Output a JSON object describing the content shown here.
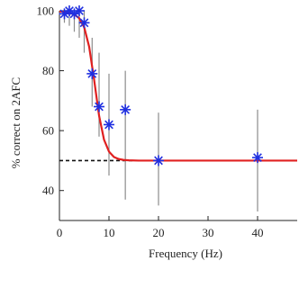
{
  "chart_data": {
    "type": "scatter",
    "title": "",
    "xlabel": "Frequency (Hz)",
    "ylabel": "% correct on 2AFC",
    "xlim": [
      0,
      48
    ],
    "ylim": [
      30,
      100
    ],
    "x_ticks": [
      0,
      10,
      20,
      30,
      40
    ],
    "y_ticks": [
      40,
      60,
      80,
      100
    ],
    "grid": false,
    "legend": "none",
    "series": [
      {
        "marker": "asterisk",
        "color": "#1f2fe0",
        "points": [
          {
            "x": 1,
            "y": 99,
            "err_low": 96,
            "err_high": 100
          },
          {
            "x": 2,
            "y": 100,
            "err_low": 95,
            "err_high": 100
          },
          {
            "x": 3,
            "y": 99,
            "err_low": 93,
            "err_high": 100
          },
          {
            "x": 4,
            "y": 100,
            "err_low": 91,
            "err_high": 100
          },
          {
            "x": 5,
            "y": 96,
            "err_low": 86,
            "err_high": 100
          },
          {
            "x": 6.6,
            "y": 79,
            "err_low": 68,
            "err_high": 91
          },
          {
            "x": 8,
            "y": 68,
            "err_low": 58,
            "err_high": 86
          },
          {
            "x": 10,
            "y": 62,
            "err_low": 45,
            "err_high": 79
          },
          {
            "x": 13.3,
            "y": 67,
            "err_low": 37,
            "err_high": 80
          },
          {
            "x": 20,
            "y": 50,
            "err_low": 35,
            "err_high": 66
          },
          {
            "x": 40,
            "y": 51,
            "err_low": 33,
            "err_high": 67
          }
        ]
      }
    ],
    "fit_curve": {
      "color": "#e02020",
      "points": [
        [
          0,
          99.8
        ],
        [
          1,
          99.6
        ],
        [
          2,
          99.3
        ],
        [
          3,
          98.8
        ],
        [
          4,
          97.5
        ],
        [
          5,
          94.5
        ],
        [
          6,
          88
        ],
        [
          7,
          77
        ],
        [
          8,
          65
        ],
        [
          9,
          57
        ],
        [
          10,
          53
        ],
        [
          11,
          51.2
        ],
        [
          12,
          50.5
        ],
        [
          13,
          50.2
        ],
        [
          14,
          50.1
        ],
        [
          16,
          50
        ],
        [
          48,
          50
        ]
      ]
    },
    "reference_line": {
      "y": 50,
      "x_range": [
        0,
        15
      ],
      "style": "dashed",
      "color": "#111111"
    }
  }
}
